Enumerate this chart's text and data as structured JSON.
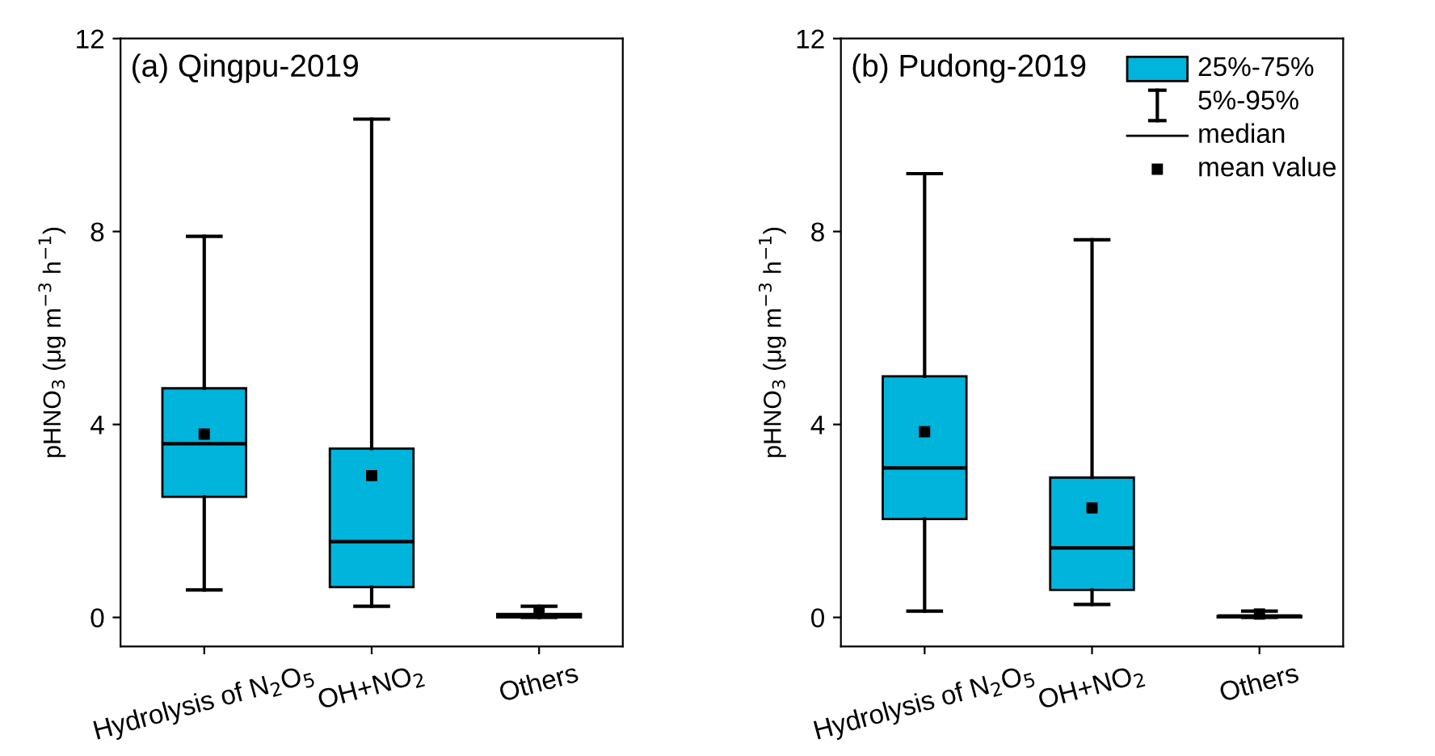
{
  "chart_data": [
    {
      "type": "box",
      "title": "(a) Qingpu-2019",
      "ylabel": "pHNO$_{3}$ (μg m$^{−3}$ h$^{−1}$)",
      "categories": [
        "Hydrolysis of N$_{2}$O$_{5}$",
        "OH+NO$_{2}$",
        "Others"
      ],
      "color": "#00b4dc",
      "ylim": [
        -0.6,
        12
      ],
      "yticks": [
        0,
        4,
        8,
        12
      ],
      "grid": false,
      "boxes": [
        {
          "low": 0.57,
          "q1": 2.5,
          "median": 3.6,
          "q3": 4.75,
          "high": 7.9,
          "mean": 3.8
        },
        {
          "low": 0.23,
          "q1": 0.63,
          "median": 1.57,
          "q3": 3.5,
          "high": 10.33,
          "mean": 2.94
        },
        {
          "low": 0.0,
          "q1": 0.0,
          "median": 0.03,
          "q3": 0.07,
          "high": 0.23,
          "mean": 0.1
        }
      ]
    },
    {
      "type": "box",
      "title": "(b) Pudong-2019",
      "ylabel": "pHNO$_{3}$ (μg m$^{−3}$ h$^{−1}$)",
      "categories": [
        "Hydrolysis of N$_{2}$O$_{5}$",
        "OH+NO$_{2}$",
        "Others"
      ],
      "color": "#00b4dc",
      "ylim": [
        -0.6,
        12
      ],
      "yticks": [
        0,
        4,
        8,
        12
      ],
      "grid": false,
      "annotations": [
        "25%-75%",
        "5%-95%",
        "median",
        "mean value"
      ],
      "boxes": [
        {
          "low": 0.13,
          "q1": 2.04,
          "median": 3.1,
          "q3": 5.0,
          "high": 9.2,
          "mean": 3.85
        },
        {
          "low": 0.27,
          "q1": 0.57,
          "median": 1.44,
          "q3": 2.9,
          "high": 7.83,
          "mean": 2.27
        },
        {
          "low": 0.0,
          "q1": 0.0,
          "median": 0.03,
          "q3": 0.03,
          "high": 0.13,
          "mean": 0.07
        }
      ]
    }
  ]
}
